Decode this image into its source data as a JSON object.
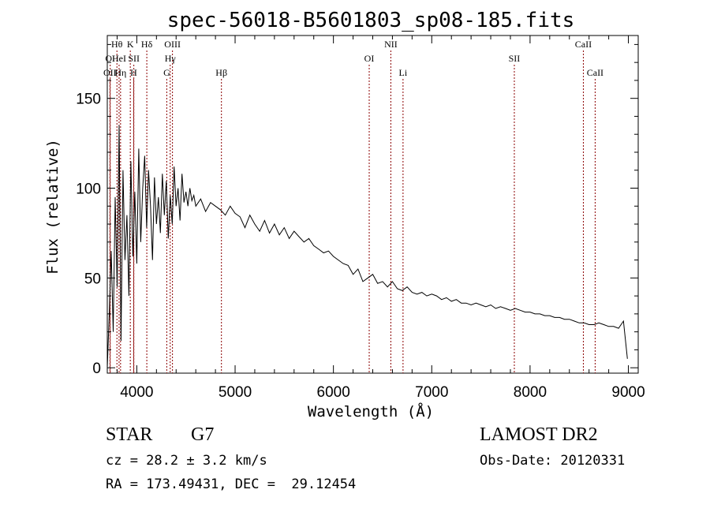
{
  "chart_data": {
    "type": "line",
    "title": "spec-56018-B5601803_sp08-185.fits",
    "xlabel": "Wavelength (Å)",
    "ylabel": "Flux (relative)",
    "xlim": [
      3700,
      9100
    ],
    "ylim": [
      -3,
      185
    ],
    "xticks": [
      4000,
      5000,
      6000,
      7000,
      8000,
      9000
    ],
    "yticks": [
      0,
      50,
      100,
      150
    ],
    "grid": false,
    "line_color": "#000000",
    "marker_color": "#8b0000",
    "series": [
      {
        "x": [
          3700,
          3720,
          3740,
          3760,
          3780,
          3800,
          3820,
          3840,
          3860,
          3880,
          3900,
          3920,
          3940,
          3960,
          3980,
          4000,
          4020,
          4040,
          4060,
          4080,
          4100,
          4120,
          4140,
          4160,
          4180,
          4200,
          4220,
          4240,
          4260,
          4280,
          4300,
          4320,
          4340,
          4360,
          4380,
          4400,
          4420,
          4440,
          4460,
          4480,
          4500,
          4520,
          4540,
          4560,
          4580,
          4600,
          4650,
          4700,
          4750,
          4800,
          4850,
          4900,
          4950,
          5000,
          5050,
          5100,
          5150,
          5200,
          5250,
          5300,
          5350,
          5400,
          5450,
          5500,
          5550,
          5600,
          5650,
          5700,
          5750,
          5800,
          5850,
          5900,
          5950,
          6000,
          6050,
          6100,
          6150,
          6200,
          6250,
          6300,
          6350,
          6400,
          6450,
          6500,
          6550,
          6600,
          6650,
          6700,
          6750,
          6800,
          6850,
          6900,
          6950,
          7000,
          7050,
          7100,
          7150,
          7200,
          7250,
          7300,
          7350,
          7400,
          7450,
          7500,
          7550,
          7600,
          7650,
          7700,
          7750,
          7800,
          7850,
          7900,
          7950,
          8000,
          8050,
          8100,
          8150,
          8200,
          8250,
          8300,
          8350,
          8400,
          8450,
          8500,
          8550,
          8600,
          8650,
          8700,
          8750,
          8800,
          8850,
          8900,
          8950,
          8990
        ],
        "y": [
          0,
          30,
          65,
          20,
          95,
          45,
          135,
          15,
          110,
          60,
          85,
          40,
          115,
          62,
          98,
          58,
          122,
          70,
          100,
          118,
          78,
          110,
          90,
          60,
          106,
          80,
          95,
          75,
          108,
          85,
          104,
          72,
          96,
          80,
          112,
          90,
          100,
          82,
          108,
          92,
          98,
          90,
          100,
          93,
          96,
          90,
          94,
          87,
          92,
          90,
          88,
          85,
          90,
          86,
          84,
          78,
          85,
          80,
          76,
          82,
          75,
          80,
          74,
          78,
          72,
          76,
          73,
          70,
          72,
          68,
          66,
          64,
          65,
          62,
          60,
          58,
          57,
          52,
          55,
          48,
          50,
          52,
          47,
          48,
          45,
          48,
          44,
          43,
          45,
          42,
          41,
          42,
          40,
          41,
          40,
          38,
          39,
          37,
          38,
          36,
          36,
          35,
          36,
          35,
          34,
          35,
          33,
          34,
          33,
          32,
          33,
          32,
          31,
          31,
          30,
          30,
          29,
          29,
          28,
          28,
          27,
          27,
          26,
          25,
          25,
          24,
          24,
          25,
          24,
          23,
          23,
          22,
          26,
          5
        ]
      }
    ],
    "lines": [
      {
        "label": "OI",
        "x": 3730,
        "row": 1
      },
      {
        "label": "OII",
        "x": 3727,
        "row": 2
      },
      {
        "label": "Hθ",
        "x": 3798,
        "row": 0
      },
      {
        "label": "HeI",
        "x": 3820,
        "row": 1
      },
      {
        "label": "Hη",
        "x": 3835,
        "row": 2
      },
      {
        "label": "K",
        "x": 3934,
        "row": 0
      },
      {
        "label": "SII",
        "x": 3970,
        "row": 1
      },
      {
        "label": "H",
        "x": 3968,
        "row": 2
      },
      {
        "label": "Hδ",
        "x": 4102,
        "row": 0
      },
      {
        "label": "OIII",
        "x": 4363,
        "row": 0
      },
      {
        "label": "Hγ",
        "x": 4340,
        "row": 1
      },
      {
        "label": "G",
        "x": 4305,
        "row": 2
      },
      {
        "label": "Hβ",
        "x": 4861,
        "row": 2
      },
      {
        "label": "OI",
        "x": 6364,
        "row": 1
      },
      {
        "label": "NII",
        "x": 6584,
        "row": 0
      },
      {
        "label": "Li",
        "x": 6708,
        "row": 2
      },
      {
        "label": "SII",
        "x": 7840,
        "row": 1
      },
      {
        "label": "CaII",
        "x": 8542,
        "row": 0
      },
      {
        "label": "CaII",
        "x": 8662,
        "row": 2
      }
    ]
  },
  "info": {
    "class_label": "STAR",
    "subclass": "G7",
    "survey": "LAMOST DR2",
    "cz": "cz = 28.2 ± 3.2 km/s",
    "obs_date": "Obs-Date: 20120331",
    "coords": "RA = 173.49431, DEC =  29.12454"
  }
}
